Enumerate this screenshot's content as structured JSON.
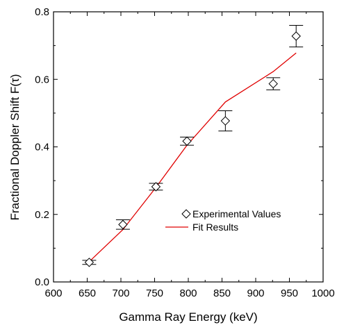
{
  "chart_data": {
    "type": "scatter",
    "xlabel": "Gamma Ray Energy (keV)",
    "ylabel": "Fractional Doppler Shift F(τ)",
    "xlim": [
      600,
      1000
    ],
    "ylim": [
      0.0,
      0.8
    ],
    "x_ticks": [
      "600",
      "650",
      "700",
      "750",
      "800",
      "850",
      "900",
      "950",
      "1000"
    ],
    "y_ticks": [
      "0.0",
      "0.2",
      "0.4",
      "0.6",
      "0.8"
    ],
    "grid": false,
    "legend_position": "lower-right",
    "series": [
      {
        "name": "Experimental Values",
        "marker": "diamond",
        "color": "#000000",
        "points": [
          {
            "x": 653,
            "y": 0.058,
            "err": 0.006
          },
          {
            "x": 703,
            "y": 0.17,
            "err": 0.014
          },
          {
            "x": 752,
            "y": 0.282,
            "err": 0.01
          },
          {
            "x": 798,
            "y": 0.417,
            "err": 0.012
          },
          {
            "x": 855,
            "y": 0.477,
            "err": 0.03
          },
          {
            "x": 926,
            "y": 0.587,
            "err": 0.018
          },
          {
            "x": 960,
            "y": 0.728,
            "err": 0.032
          }
        ]
      },
      {
        "name": "Fit Results",
        "type": "line",
        "color": "#e00000",
        "points": [
          {
            "x": 653,
            "y": 0.06
          },
          {
            "x": 703,
            "y": 0.155
          },
          {
            "x": 752,
            "y": 0.28
          },
          {
            "x": 798,
            "y": 0.405
          },
          {
            "x": 855,
            "y": 0.533
          },
          {
            "x": 926,
            "y": 0.623
          },
          {
            "x": 960,
            "y": 0.678
          }
        ]
      }
    ]
  }
}
